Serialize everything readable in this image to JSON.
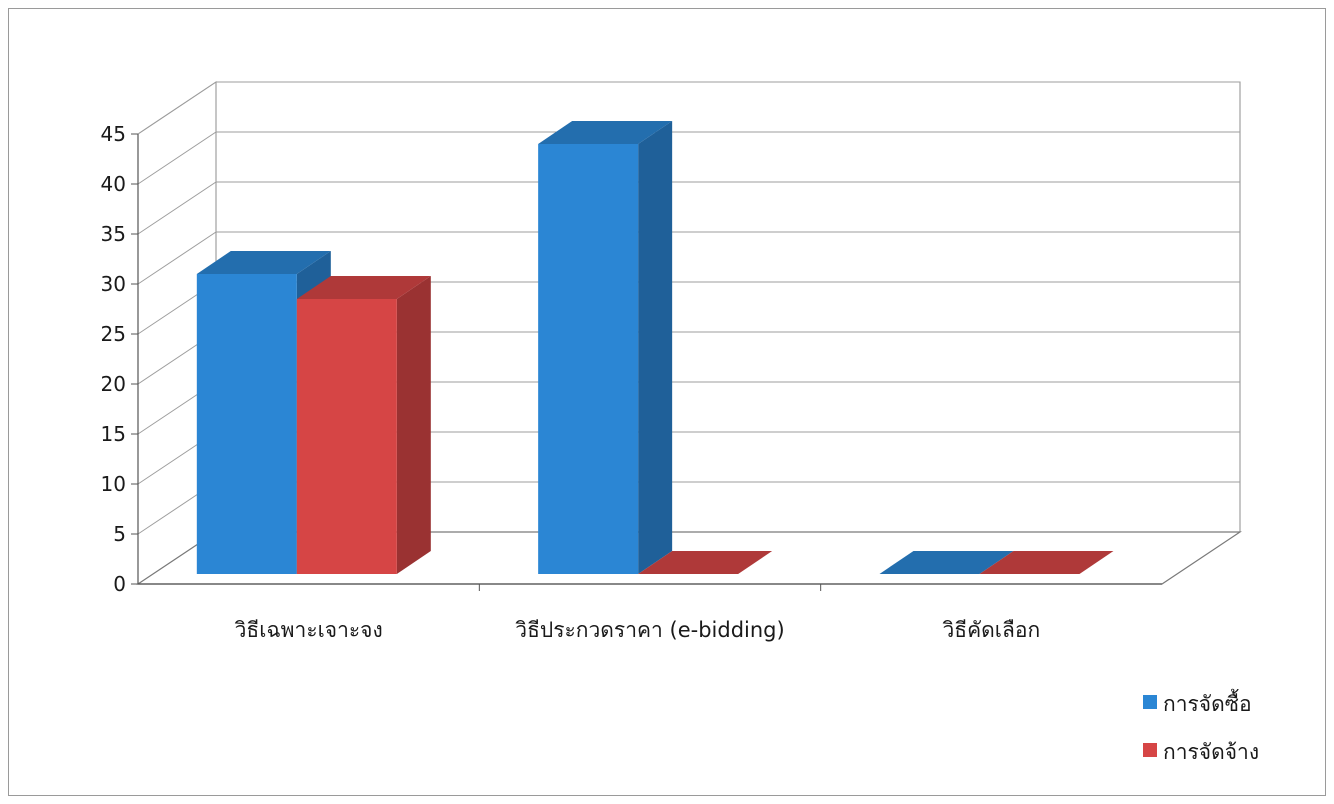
{
  "chart_data": {
    "type": "bar",
    "title": "",
    "xlabel": "",
    "ylabel": "",
    "categories": [
      "วิธีเฉพาะเจาะจง",
      "วิธีประกวดราคา (e-bidding)",
      "วิธีคัดเลือก"
    ],
    "series": [
      {
        "name": "การจัดซื้อ",
        "values": [
          30,
          43,
          0
        ],
        "color": "#2b86d4"
      },
      {
        "name": "การจัดจ้าง",
        "values": [
          27.5,
          0,
          0
        ],
        "color": "#d64545"
      }
    ],
    "ylim": [
      0,
      45
    ],
    "yticks": [
      "0",
      "5",
      "10",
      "15",
      "20",
      "25",
      "30",
      "35",
      "40",
      "45"
    ],
    "grid": true,
    "three_d": true,
    "legend_position": "bottom-right"
  }
}
